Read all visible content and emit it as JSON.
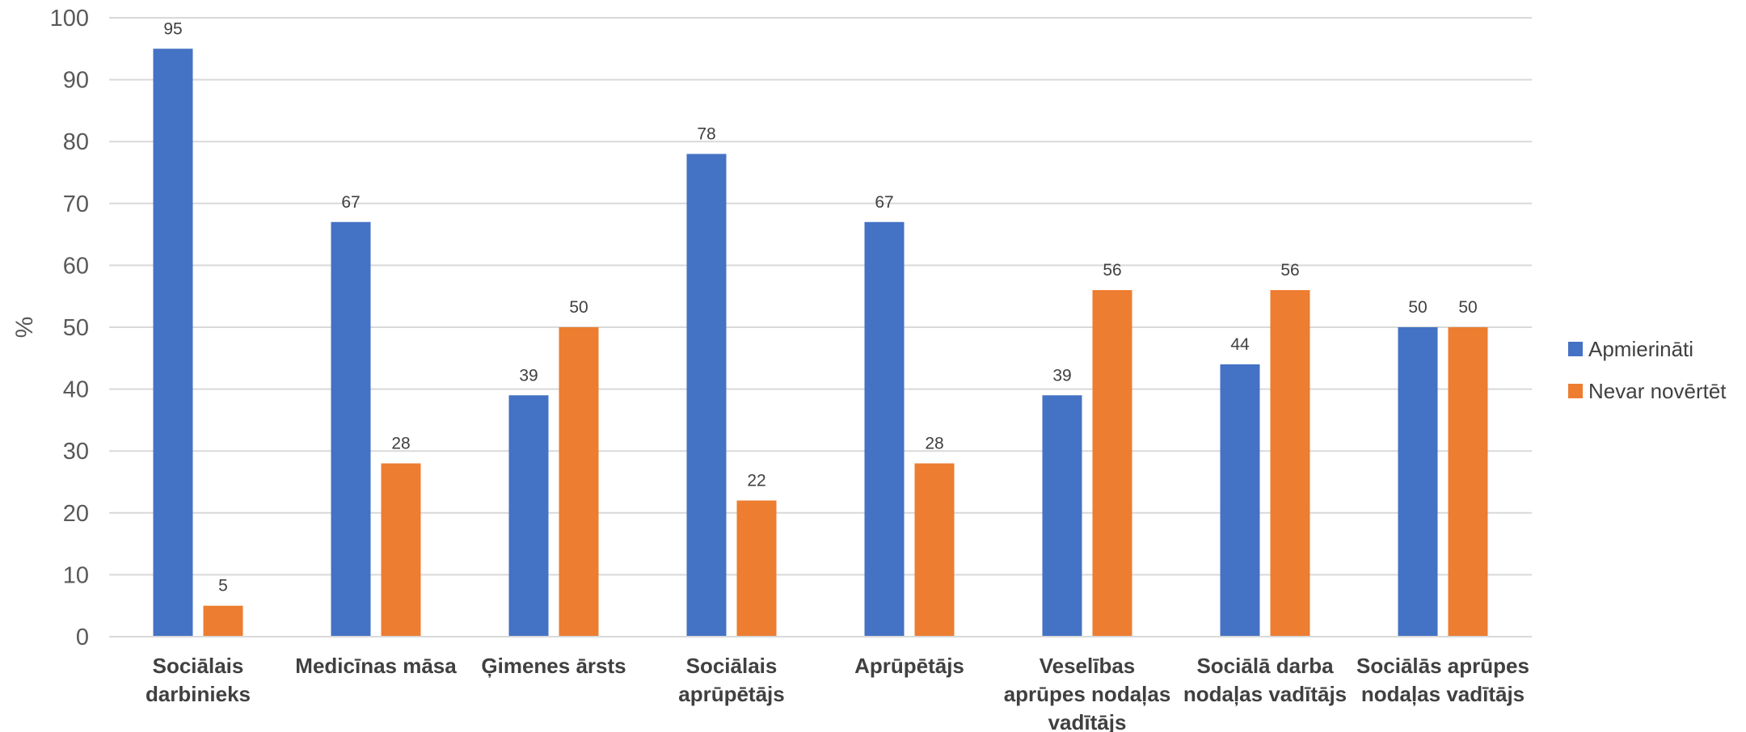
{
  "chart_data": {
    "type": "bar",
    "ylabel": "%",
    "xlabel": "",
    "ylim": [
      0,
      100
    ],
    "ytick_step": 10,
    "grid": true,
    "legend_position": "right",
    "categories": [
      [
        "Sociālais",
        "darbinieks"
      ],
      [
        "Medicīnas māsa"
      ],
      [
        "Ģimenes ārsts"
      ],
      [
        "Sociālais",
        "aprūpētājs"
      ],
      [
        "Aprūpētājs"
      ],
      [
        "Veselības",
        "aprūpes nodaļas",
        "vadītājs"
      ],
      [
        "Sociālā darba",
        "nodaļas vadītājs"
      ],
      [
        "Sociālās aprūpes",
        "nodaļas vadītājs"
      ]
    ],
    "series": [
      {
        "name": "Apmierināti",
        "color": "#4472C4",
        "values": [
          95,
          67,
          39,
          78,
          67,
          39,
          44,
          50
        ]
      },
      {
        "name": "Nevar novērtēt",
        "color": "#ED7D31",
        "values": [
          5,
          28,
          50,
          22,
          28,
          56,
          56,
          50
        ]
      }
    ]
  }
}
